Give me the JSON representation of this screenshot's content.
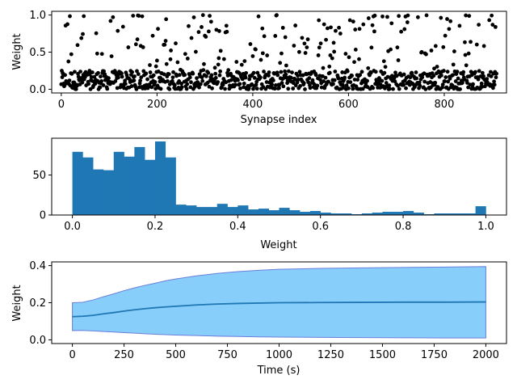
{
  "chart_data": [
    {
      "type": "scatter",
      "xlabel": "Synapse index",
      "ylabel": "Weight",
      "xlim": [
        -20,
        930
      ],
      "ylim": [
        -0.05,
        1.05
      ],
      "xticks": [
        0,
        200,
        400,
        600,
        800
      ],
      "yticks": [
        0.0,
        0.5,
        1.0
      ],
      "xtick_labels": [
        "0",
        "200",
        "400",
        "600",
        "800"
      ],
      "ytick_labels": [
        "0.0",
        "0.5",
        "1.0"
      ],
      "marker_color": "#000000",
      "n_points": 910,
      "distribution_note": "about 80% of weights between 0.0 and 0.25, remaining spread 0.25 to 1.0"
    },
    {
      "type": "bar",
      "xlabel": "Weight",
      "ylabel": "",
      "xlim": [
        -0.05,
        1.05
      ],
      "ylim": [
        0,
        96
      ],
      "xticks": [
        0.0,
        0.2,
        0.4,
        0.6,
        0.8,
        1.0
      ],
      "yticks": [
        0,
        50
      ],
      "xtick_labels": [
        "0.0",
        "0.2",
        "0.4",
        "0.6",
        "0.8",
        "1.0"
      ],
      "ytick_labels": [
        "0",
        "50"
      ],
      "bar_color": "#1f77b4",
      "bin_width": 0.025,
      "bin_starts": [
        0.0,
        0.025,
        0.05,
        0.075,
        0.1,
        0.125,
        0.15,
        0.175,
        0.2,
        0.225,
        0.25,
        0.275,
        0.3,
        0.325,
        0.35,
        0.375,
        0.4,
        0.425,
        0.45,
        0.475,
        0.5,
        0.525,
        0.55,
        0.575,
        0.6,
        0.625,
        0.65,
        0.675,
        0.7,
        0.725,
        0.75,
        0.775,
        0.8,
        0.825,
        0.85,
        0.875,
        0.9,
        0.925,
        0.95,
        0.975
      ],
      "counts": [
        79,
        72,
        57,
        56,
        79,
        73,
        85,
        69,
        92,
        72,
        13,
        12,
        10,
        10,
        14,
        10,
        12,
        7,
        8,
        6,
        9,
        6,
        4,
        5,
        3,
        2,
        2,
        1,
        2,
        3,
        4,
        4,
        5,
        3,
        1,
        2,
        2,
        2,
        2,
        11
      ]
    },
    {
      "type": "line",
      "xlabel": "Time (s)",
      "ylabel": "Weight",
      "xlim": [
        -100,
        2100
      ],
      "ylim": [
        -0.02,
        0.42
      ],
      "xticks": [
        0,
        250,
        500,
        750,
        1000,
        1250,
        1500,
        1750,
        2000
      ],
      "yticks": [
        0.0,
        0.2,
        0.4
      ],
      "xtick_labels": [
        "0",
        "250",
        "500",
        "750",
        "1000",
        "1250",
        "1500",
        "1750",
        "2000"
      ],
      "ytick_labels": [
        "0.0",
        "0.2",
        "0.4"
      ],
      "fill_color": "#87cefa",
      "fill_edge_color": "#6a7fdb",
      "line_color": "#1f77b4",
      "x": [
        0,
        50,
        100,
        150,
        200,
        250,
        300,
        350,
        400,
        450,
        500,
        600,
        700,
        800,
        900,
        1000,
        1200,
        1400,
        1600,
        1800,
        2000
      ],
      "series": [
        {
          "name": "mean",
          "values": [
            0.125,
            0.127,
            0.132,
            0.14,
            0.147,
            0.155,
            0.162,
            0.168,
            0.173,
            0.177,
            0.181,
            0.188,
            0.193,
            0.196,
            0.198,
            0.2,
            0.201,
            0.202,
            0.203,
            0.203,
            0.204
          ]
        },
        {
          "name": "upper",
          "values": [
            0.2,
            0.202,
            0.215,
            0.232,
            0.248,
            0.265,
            0.28,
            0.293,
            0.305,
            0.318,
            0.328,
            0.345,
            0.358,
            0.368,
            0.375,
            0.38,
            0.385,
            0.388,
            0.39,
            0.392,
            0.395
          ]
        },
        {
          "name": "lower",
          "values": [
            0.05,
            0.051,
            0.048,
            0.045,
            0.042,
            0.039,
            0.036,
            0.033,
            0.03,
            0.028,
            0.026,
            0.023,
            0.02,
            0.018,
            0.016,
            0.015,
            0.013,
            0.012,
            0.011,
            0.01,
            0.01
          ]
        }
      ]
    }
  ]
}
